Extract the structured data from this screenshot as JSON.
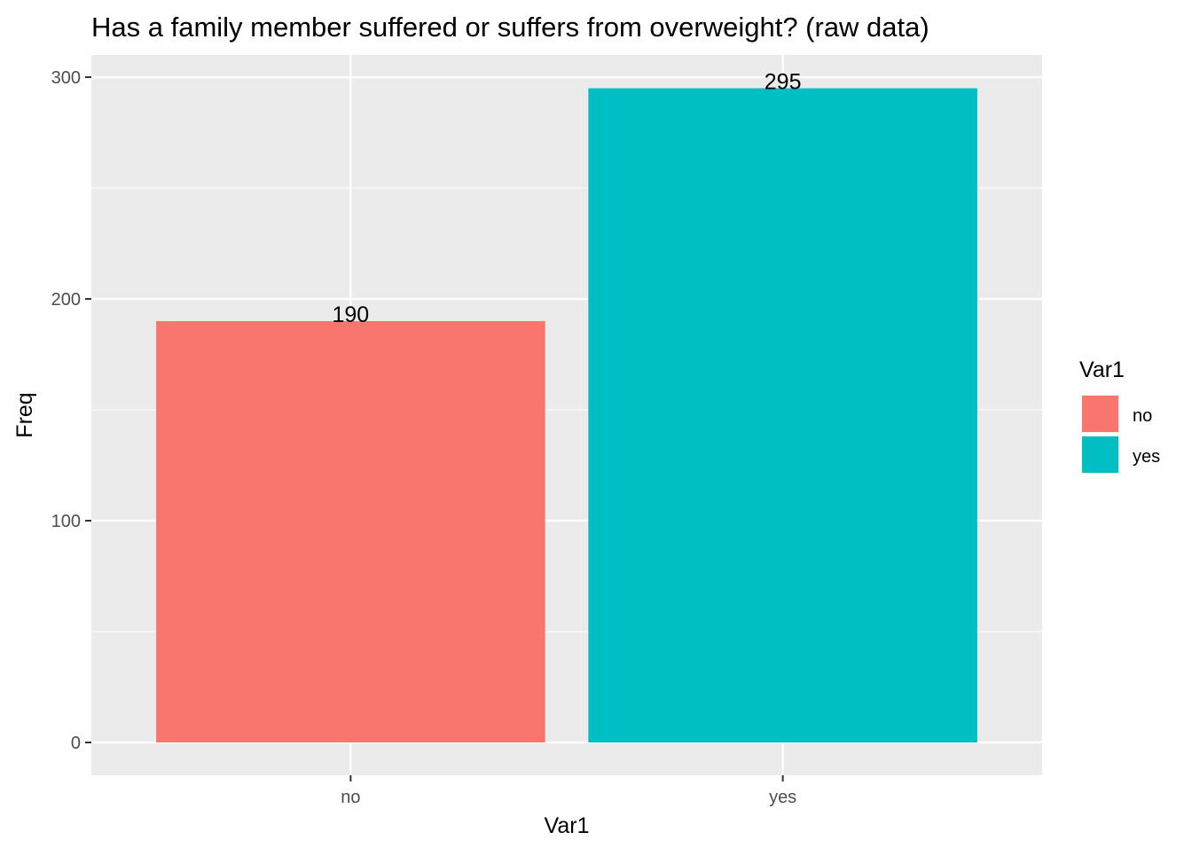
{
  "chart_data": {
    "type": "bar",
    "title": "Has a family member suffered or suffers from overweight? (raw data)",
    "xlabel": "Var1",
    "ylabel": "Freq",
    "categories": [
      "no",
      "yes"
    ],
    "values": [
      190,
      295
    ],
    "data_labels": [
      "190",
      "295"
    ],
    "colors": [
      "#F8766D",
      "#00BFC4"
    ],
    "ylim": [
      0,
      300
    ],
    "y_ticks": [
      0,
      100,
      200,
      300
    ],
    "y_tick_labels": [
      "0",
      "100",
      "200",
      "300"
    ],
    "grid": true,
    "panel_background": "#EBEBEB",
    "legend": {
      "title": "Var1",
      "position": "right",
      "entries": [
        "no",
        "yes"
      ]
    }
  }
}
